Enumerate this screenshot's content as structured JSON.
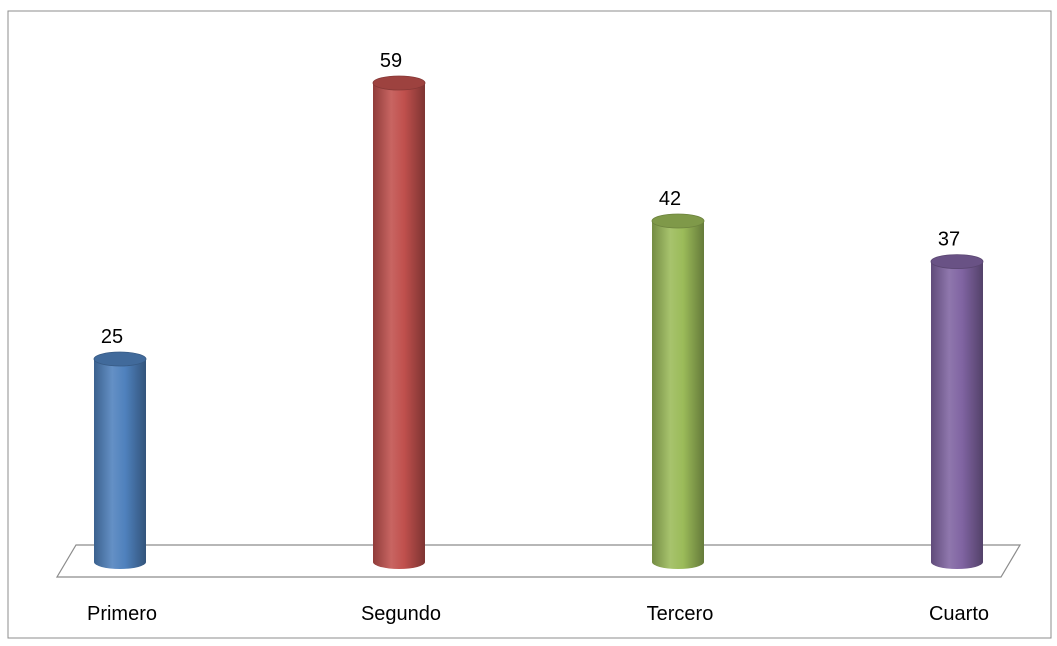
{
  "chart_data": {
    "type": "bar",
    "style": "3d-cylinder",
    "categories": [
      "Primero",
      "Segundo",
      "Tercero",
      "Cuarto"
    ],
    "values": [
      25,
      59,
      42,
      37
    ],
    "data_labels": [
      "25",
      "59",
      "42",
      "37"
    ],
    "colors": [
      "#4f81bd",
      "#c0504d",
      "#9bbb59",
      "#8064a2"
    ],
    "ylim": [
      0,
      59
    ],
    "grid": false,
    "legend": "none"
  }
}
